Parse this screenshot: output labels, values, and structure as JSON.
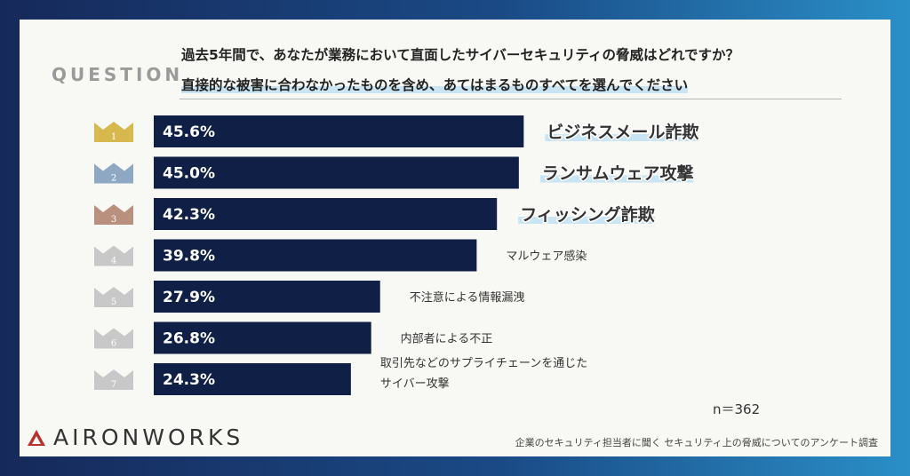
{
  "question": {
    "label": "QUESTION",
    "line1": "過去5年間で、あなたが業務において直面したサイバーセキュリティの脅威はどれですか？",
    "line2": "直接的な被害に合わなかったものを含め、あてはまるものすべてを選んでください"
  },
  "chart_data": {
    "type": "bar",
    "orientation": "horizontal",
    "categories": [
      "ビジネスメール詐欺",
      "ランサムウェア攻撃",
      "フィッシング詐欺",
      "マルウェア感染",
      "不注意による情報漏洩",
      "内部者による不正",
      "取引先などのサプライチェーンを通じたサイバー攻撃"
    ],
    "category_lines": [
      [
        "ビジネスメール詐欺"
      ],
      [
        "ランサムウェア攻撃"
      ],
      [
        "フィッシング詐欺"
      ],
      [
        "マルウェア感染"
      ],
      [
        "不注意による情報漏洩"
      ],
      [
        "内部者による不正"
      ],
      [
        "取引先などのサプライチェーンを通じた",
        "サイバー攻撃"
      ]
    ],
    "values": [
      45.6,
      45.0,
      42.3,
      39.8,
      27.9,
      26.8,
      24.3
    ],
    "value_labels": [
      "45.6%",
      "45.0%",
      "42.3%",
      "39.8%",
      "27.9%",
      "26.8%",
      "24.3%"
    ],
    "ranks": [
      "1",
      "2",
      "3",
      "4",
      "5",
      "6",
      "7"
    ],
    "xlim": [
      0,
      100
    ],
    "bar_color": "#0f1f45",
    "rank_colors": [
      "#d6b84e",
      "#8ea8c4",
      "#b9907e",
      "#c8c8c8",
      "#c8c8c8",
      "#c8c8c8",
      "#c8c8c8"
    ],
    "grid": false,
    "legend": "none"
  },
  "sample_size": "n＝362",
  "logo": {
    "text": "AIRONWORKS"
  },
  "source": "企業のセキュリティ担当者に聞く セキュリティ上の脅威についてのアンケート調査"
}
